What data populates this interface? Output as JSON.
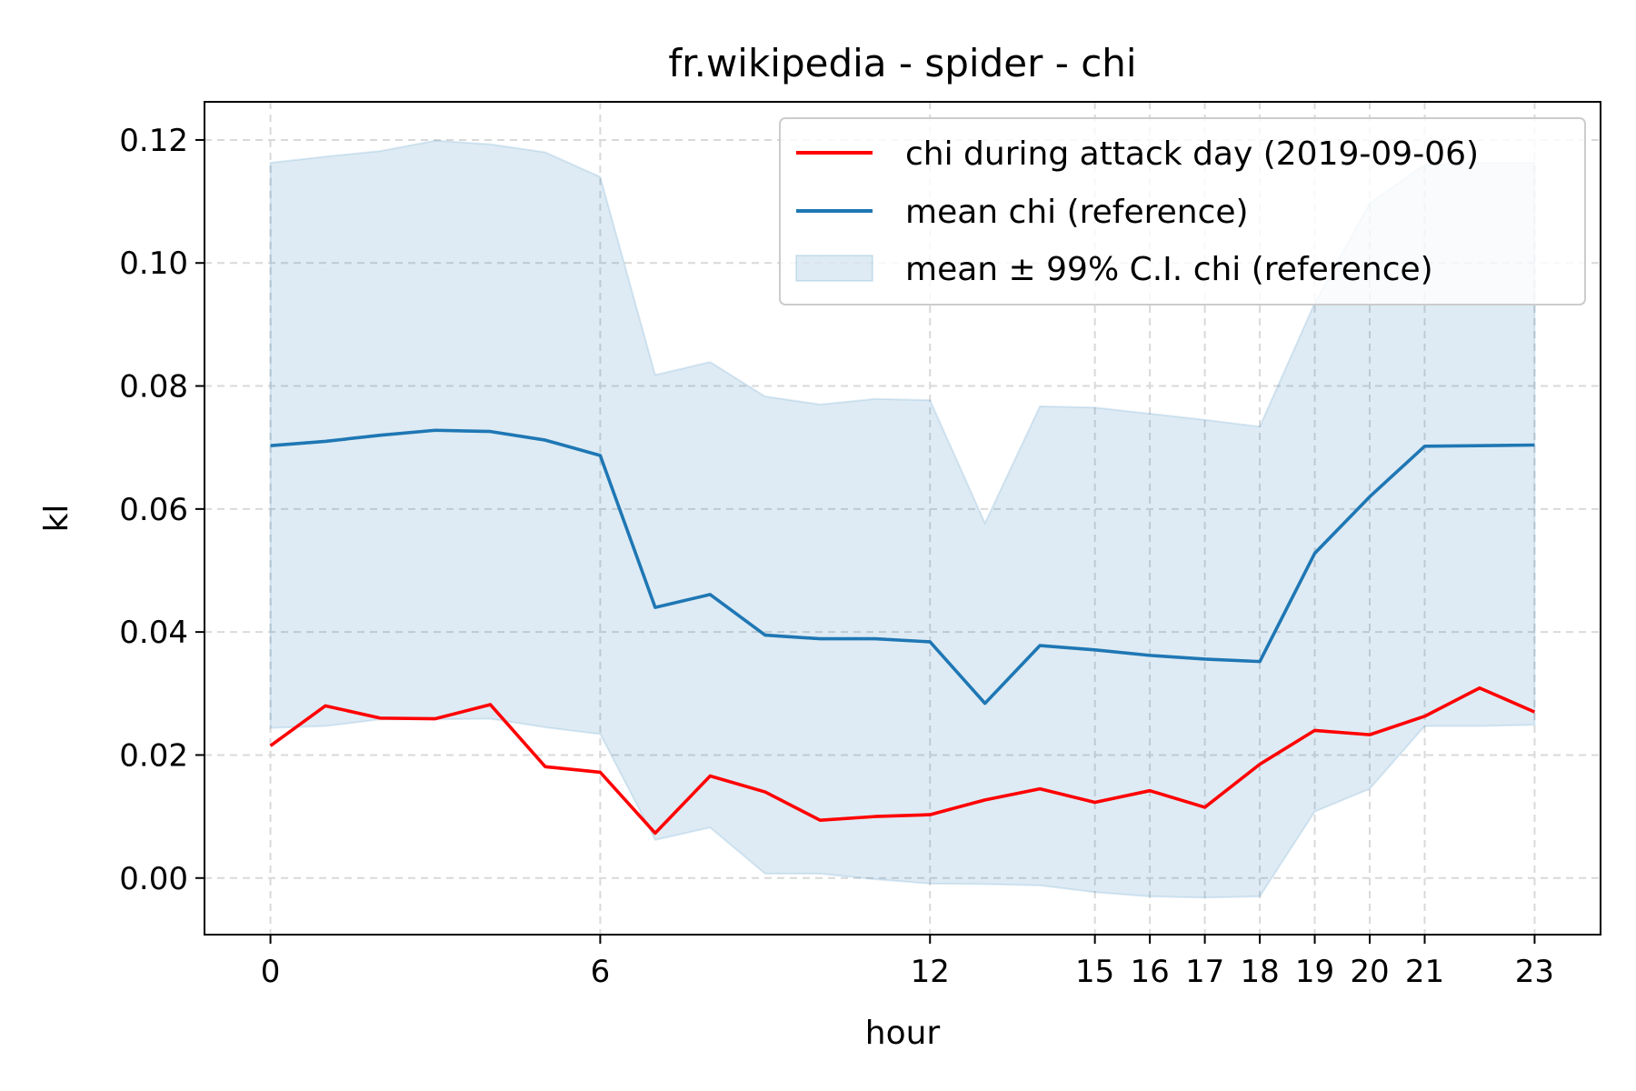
{
  "chart_data": {
    "type": "line",
    "title": "fr.wikipedia - spider - chi",
    "xlabel": "hour",
    "ylabel": "kl",
    "xlim": [
      -1.2,
      24.2
    ],
    "ylim": [
      -0.0092,
      0.1262
    ],
    "x_ticks": [
      0,
      6,
      12,
      15,
      16,
      17,
      18,
      19,
      20,
      21,
      23
    ],
    "y_ticks": [
      0.0,
      0.02,
      0.04,
      0.06,
      0.08,
      0.1,
      0.12
    ],
    "y_tick_labels": [
      "0.00",
      "0.02",
      "0.04",
      "0.06",
      "0.08",
      "0.10",
      "0.12"
    ],
    "grid": true,
    "legend_position": "top-right",
    "x": [
      0,
      1,
      2,
      3,
      4,
      5,
      6,
      7,
      8,
      9,
      10,
      11,
      12,
      13,
      14,
      15,
      16,
      17,
      18,
      19,
      20,
      21,
      22,
      23
    ],
    "series": [
      {
        "name": "chi during attack day (2019-09-06)",
        "kind": "line",
        "color": "#ff0000",
        "values": [
          0.0215,
          0.028,
          0.026,
          0.0259,
          0.0282,
          0.0181,
          0.0172,
          0.0073,
          0.0166,
          0.014,
          0.0094,
          0.01,
          0.0103,
          0.0127,
          0.0145,
          0.0123,
          0.0142,
          0.0115,
          0.0185,
          0.024,
          0.0233,
          0.0263,
          0.0309,
          0.027
        ]
      },
      {
        "name": "mean chi (reference)",
        "kind": "line",
        "color": "#1f77b4",
        "values": [
          0.0703,
          0.071,
          0.072,
          0.0728,
          0.0726,
          0.0712,
          0.0687,
          0.044,
          0.0461,
          0.0395,
          0.0389,
          0.0389,
          0.0384,
          0.0284,
          0.0378,
          0.0371,
          0.0362,
          0.0356,
          0.0352,
          0.0528,
          0.062,
          0.0702,
          0.0703,
          0.0704
        ]
      },
      {
        "name": "mean ± 99% C.I. chi (reference)",
        "kind": "band",
        "color": "#1f77b4",
        "upper": [
          0.1163,
          0.1173,
          0.1182,
          0.1199,
          0.1193,
          0.118,
          0.114,
          0.0818,
          0.0839,
          0.0783,
          0.077,
          0.0779,
          0.0777,
          0.0577,
          0.0767,
          0.0765,
          0.0755,
          0.0745,
          0.0734,
          0.0935,
          0.1097,
          0.116,
          0.1163,
          0.1163
        ],
        "lower": [
          0.0244,
          0.0247,
          0.0258,
          0.0258,
          0.0259,
          0.0245,
          0.0234,
          0.0062,
          0.0082,
          0.0007,
          0.0007,
          -0.0002,
          -0.0009,
          -0.001,
          -0.0012,
          -0.0023,
          -0.003,
          -0.0032,
          -0.003,
          0.0108,
          0.0145,
          0.0247,
          0.0247,
          0.0249
        ]
      }
    ]
  }
}
